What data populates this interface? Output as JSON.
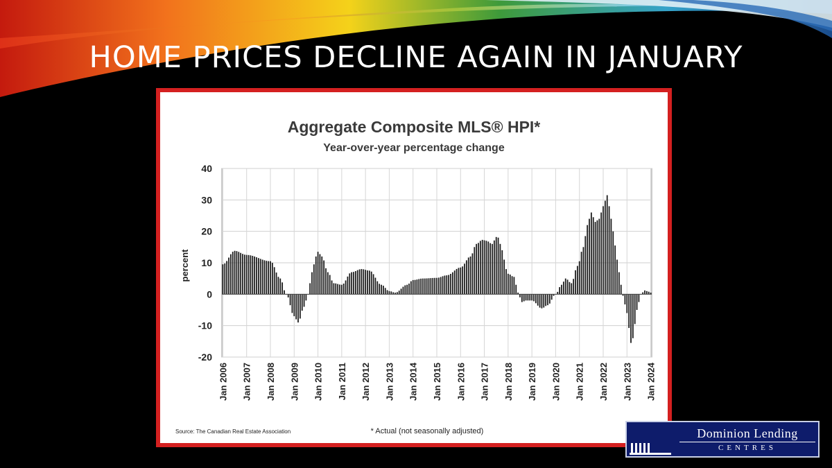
{
  "slide": {
    "title": "HOME PRICES DECLINE AGAIN IN JANUARY"
  },
  "logo": {
    "name": "Dominion Lending",
    "sub": "CENTRES"
  },
  "colors": {
    "frame": "#d42020",
    "background": "#000000",
    "bars": "#1a1a1a",
    "logo_bg": "#0e1c6b"
  },
  "chart_data": {
    "type": "bar",
    "title": "Aggregate Composite MLS® HPI*",
    "subtitle": "Year-over-year percentage change",
    "ylabel": "percent",
    "xlabel": "",
    "ylim": [
      -20,
      40
    ],
    "yticks": [
      40,
      30,
      20,
      10,
      0,
      -10,
      -20
    ],
    "grid": true,
    "source": "Source: The Canadian Real Estate Association",
    "footnote": "* Actual (not seasonally adjusted)",
    "x_ticks": [
      "Jan 2006",
      "Jan 2007",
      "Jan 2008",
      "Jan 2009",
      "Jan 2010",
      "Jan 2011",
      "Jan 2012",
      "Jan 2013",
      "Jan 2014",
      "Jan 2015",
      "Jan 2016",
      "Jan 2017",
      "Jan 2018",
      "Jan 2019",
      "Jan 2020",
      "Jan 2021",
      "Jan 2022",
      "Jan 2023",
      "Jan 2024"
    ],
    "series": [
      {
        "frequency": "monthly",
        "start": "Jan 2006",
        "end": "Jan 2024",
        "keypoints": [
          [
            "Jan 2006",
            9.5
          ],
          [
            "Jul 2006",
            13.8
          ],
          [
            "Jan 2007",
            12.5
          ],
          [
            "Jan 2008",
            10.5
          ],
          [
            "Jun 2008",
            5
          ],
          [
            "Sep 2008",
            0
          ],
          [
            "Jan 2009",
            -7
          ],
          [
            "Mar 2009",
            -9
          ],
          [
            "Jun 2009",
            -4
          ],
          [
            "Aug 2009",
            0
          ],
          [
            "Oct 2009",
            7
          ],
          [
            "Dec 2009",
            12
          ],
          [
            "Jan 2010",
            13.5
          ],
          [
            "Mar 2010",
            12
          ],
          [
            "Jun 2010",
            7
          ],
          [
            "Sep 2010",
            3.5
          ],
          [
            "Jan 2011",
            3
          ],
          [
            "Jun 2011",
            7
          ],
          [
            "Nov 2011",
            8
          ],
          [
            "Mar 2012",
            7.5
          ],
          [
            "Sep 2012",
            3
          ],
          [
            "Jan 2013",
            1
          ],
          [
            "Apr 2013",
            0.5
          ],
          [
            "Oct 2013",
            3
          ],
          [
            "Jan 2014",
            4.5
          ],
          [
            "Jun 2014",
            5
          ],
          [
            "Jan 2015",
            5.2
          ],
          [
            "Jun 2015",
            6
          ],
          [
            "Jan 2016",
            8.5
          ],
          [
            "Jun 2016",
            12
          ],
          [
            "Sep 2016",
            16
          ],
          [
            "Dec 2016",
            17.3
          ],
          [
            "Feb 2017",
            17
          ],
          [
            "May 2017",
            16
          ],
          [
            "Jul 2017",
            18.2
          ],
          [
            "Aug 2017",
            18
          ],
          [
            "Oct 2017",
            14
          ],
          [
            "Dec 2017",
            8
          ],
          [
            "Jan 2018",
            6.5
          ],
          [
            "Apr 2018",
            5.5
          ],
          [
            "Jun 2018",
            0.5
          ],
          [
            "Aug 2018",
            -2.5
          ],
          [
            "Oct 2018",
            -2
          ],
          [
            "Jan 2019",
            -2
          ],
          [
            "Jun 2019",
            -4.5
          ],
          [
            "Sep 2019",
            -3.5
          ],
          [
            "Jan 2020",
            0
          ],
          [
            "Apr 2020",
            3
          ],
          [
            "Jun 2020",
            5
          ],
          [
            "Sep 2020",
            3.5
          ],
          [
            "Dec 2020",
            9
          ],
          [
            "Mar 2021",
            15
          ],
          [
            "May 2021",
            22
          ],
          [
            "Jul 2021",
            26
          ],
          [
            "Sep 2021",
            23
          ],
          [
            "Nov 2021",
            24
          ],
          [
            "Jan 2022",
            28
          ],
          [
            "Mar 2022",
            31.5
          ],
          [
            "Apr 2022",
            28
          ],
          [
            "Jun 2022",
            20
          ],
          [
            "Aug 2022",
            11
          ],
          [
            "Oct 2022",
            3
          ],
          [
            "Nov 2022",
            -0.5
          ],
          [
            "Jan 2023",
            -6
          ],
          [
            "Mar 2023",
            -15.5
          ],
          [
            "Apr 2023",
            -14
          ],
          [
            "Jun 2023",
            -5
          ],
          [
            "Aug 2023",
            0
          ],
          [
            "Oct 2023",
            1.2
          ],
          [
            "Dec 2023",
            0.8
          ],
          [
            "Jan 2024",
            0.5
          ]
        ]
      }
    ]
  }
}
